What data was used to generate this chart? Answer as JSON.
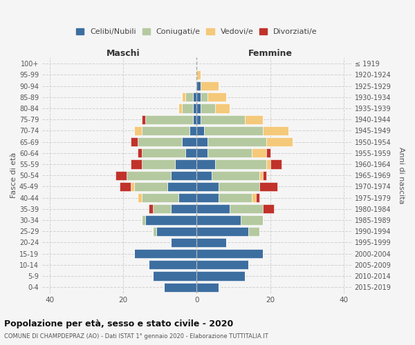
{
  "age_groups": [
    "0-4",
    "5-9",
    "10-14",
    "15-19",
    "20-24",
    "25-29",
    "30-34",
    "35-39",
    "40-44",
    "45-49",
    "50-54",
    "55-59",
    "60-64",
    "65-69",
    "70-74",
    "75-79",
    "80-84",
    "85-89",
    "90-94",
    "95-99",
    "100+"
  ],
  "birth_years": [
    "2015-2019",
    "2010-2014",
    "2005-2009",
    "2000-2004",
    "1995-1999",
    "1990-1994",
    "1985-1989",
    "1980-1984",
    "1975-1979",
    "1970-1974",
    "1965-1969",
    "1960-1964",
    "1955-1959",
    "1950-1954",
    "1945-1949",
    "1940-1944",
    "1935-1939",
    "1930-1934",
    "1925-1929",
    "1920-1924",
    "≤ 1919"
  ],
  "colors": {
    "celibi": "#3d6ea0",
    "coniugati": "#b5c9a0",
    "vedovi": "#f5c97a",
    "divorziati": "#c0322a"
  },
  "maschi": {
    "celibi": [
      9,
      12,
      13,
      17,
      7,
      11,
      14,
      7,
      5,
      8,
      7,
      6,
      3,
      4,
      2,
      1,
      1,
      1,
      0,
      0,
      0
    ],
    "coniugati": [
      0,
      0,
      0,
      0,
      0,
      1,
      1,
      5,
      10,
      9,
      12,
      9,
      12,
      12,
      13,
      13,
      3,
      2,
      0,
      0,
      0
    ],
    "vedovi": [
      0,
      0,
      0,
      0,
      0,
      0,
      0,
      0,
      1,
      1,
      0,
      0,
      0,
      0,
      2,
      0,
      1,
      1,
      0,
      0,
      0
    ],
    "divorziati": [
      0,
      0,
      0,
      0,
      0,
      0,
      0,
      1,
      0,
      3,
      3,
      3,
      1,
      2,
      0,
      1,
      0,
      0,
      0,
      0,
      0
    ]
  },
  "femmine": {
    "celibi": [
      6,
      13,
      14,
      18,
      8,
      14,
      12,
      9,
      6,
      6,
      4,
      5,
      3,
      3,
      2,
      1,
      1,
      1,
      1,
      0,
      0
    ],
    "coniugati": [
      0,
      0,
      0,
      0,
      0,
      3,
      6,
      9,
      9,
      11,
      13,
      14,
      12,
      16,
      16,
      12,
      4,
      2,
      0,
      0,
      0
    ],
    "vedovi": [
      0,
      0,
      0,
      0,
      0,
      0,
      0,
      0,
      1,
      0,
      1,
      1,
      4,
      7,
      7,
      5,
      4,
      5,
      5,
      1,
      0
    ],
    "divorziati": [
      0,
      0,
      0,
      0,
      0,
      0,
      0,
      3,
      1,
      5,
      1,
      3,
      1,
      0,
      0,
      0,
      0,
      0,
      0,
      0,
      0
    ]
  },
  "xlim": 42,
  "title": "Popolazione per età, sesso e stato civile - 2020",
  "subtitle": "COMUNE DI CHAMPDEPRAZ (AO) - Dati ISTAT 1° gennaio 2020 - Elaborazione TUTTITALIA.IT",
  "ylabel_left": "Fasce di età",
  "ylabel_right": "Anni di nascita",
  "xlabel_left": "Maschi",
  "xlabel_right": "Femmine",
  "legend_labels": [
    "Celibi/Nubili",
    "Coniugati/e",
    "Vedovi/e",
    "Divorziati/e"
  ],
  "background_color": "#f5f5f5"
}
